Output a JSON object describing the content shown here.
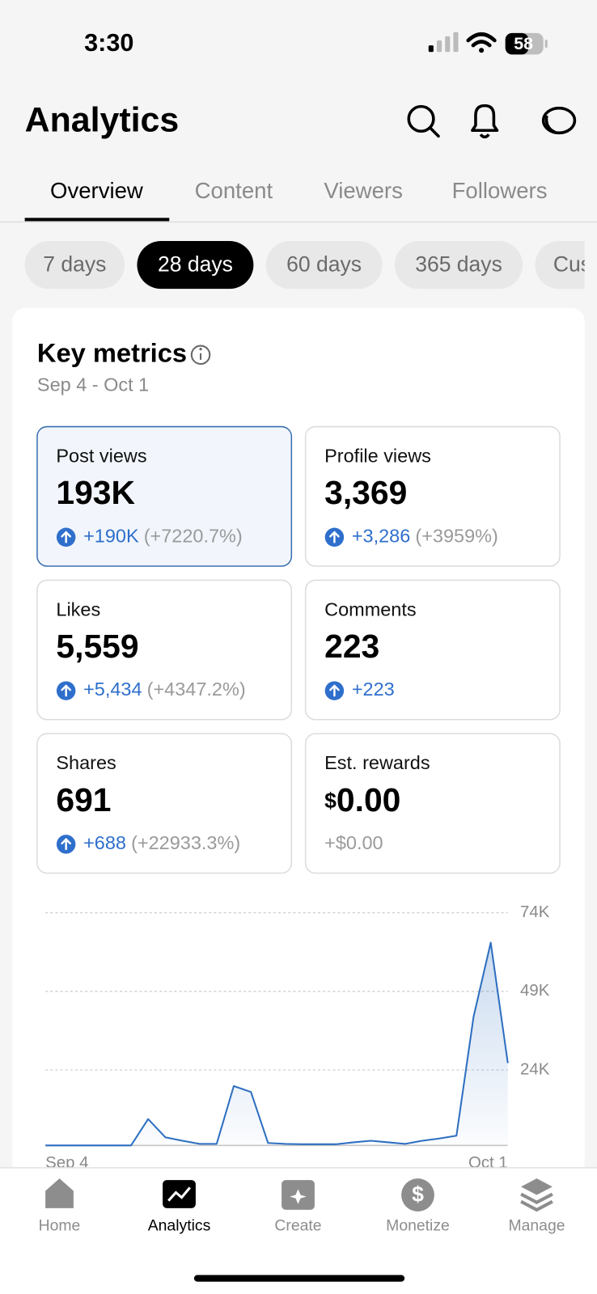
{
  "status": {
    "time": "3:30",
    "battery": "58"
  },
  "header": {
    "title": "Analytics"
  },
  "tabs": {
    "items": [
      "Overview",
      "Content",
      "Viewers",
      "Followers"
    ],
    "active": 0
  },
  "ranges": {
    "items": [
      "7 days",
      "28 days",
      "60 days",
      "365 days",
      "Custom"
    ],
    "active": 1
  },
  "card": {
    "title": "Key metrics",
    "date": "Sep 4 - Oct 1",
    "metrics": [
      {
        "label": "Post views",
        "value": "193K",
        "change": "+190K",
        "percent": "(+7220.7%)"
      },
      {
        "label": "Profile views",
        "value": "3,369",
        "change": "+3,286",
        "percent": "(+3959%)"
      },
      {
        "label": "Likes",
        "value": "5,559",
        "change": "+5,434",
        "percent": "(+4347.2%)"
      },
      {
        "label": "Comments",
        "value": "223",
        "change": "+223"
      },
      {
        "label": "Shares",
        "value": "691",
        "change": "+688",
        "percent": "(+22933.3%)"
      },
      {
        "label": "Est. rewards",
        "currency": "$",
        "value": "0.00",
        "neutral_change": "+$0.00"
      }
    ]
  },
  "chart_data": {
    "type": "line",
    "categories": [
      "Sep 4",
      null,
      null,
      null,
      null,
      null,
      null,
      null,
      null,
      null,
      null,
      null,
      null,
      null,
      null,
      null,
      null,
      null,
      null,
      null,
      null,
      null,
      null,
      null,
      null,
      null,
      null,
      "Oct 1"
    ],
    "series": [
      {
        "name": "Post views",
        "color": "#2e6fc0",
        "values": [
          0,
          0,
          0,
          0,
          0,
          0,
          8400,
          2600,
          1500,
          500,
          500,
          18900,
          17000,
          800,
          500,
          400,
          400,
          400,
          1000,
          1500,
          1000,
          500,
          1500,
          2200,
          3100,
          40900,
          64500,
          26200
        ]
      }
    ],
    "ylim": [
      0,
      74000
    ],
    "yticks": [
      {
        "value": 74000,
        "label": "74K"
      },
      {
        "value": 49000,
        "label": "49K"
      },
      {
        "value": 24000,
        "label": "24K"
      }
    ],
    "grid": true
  },
  "nav": {
    "items": [
      "Home",
      "Analytics",
      "Create",
      "Monetize",
      "Manage"
    ],
    "active": 1
  }
}
